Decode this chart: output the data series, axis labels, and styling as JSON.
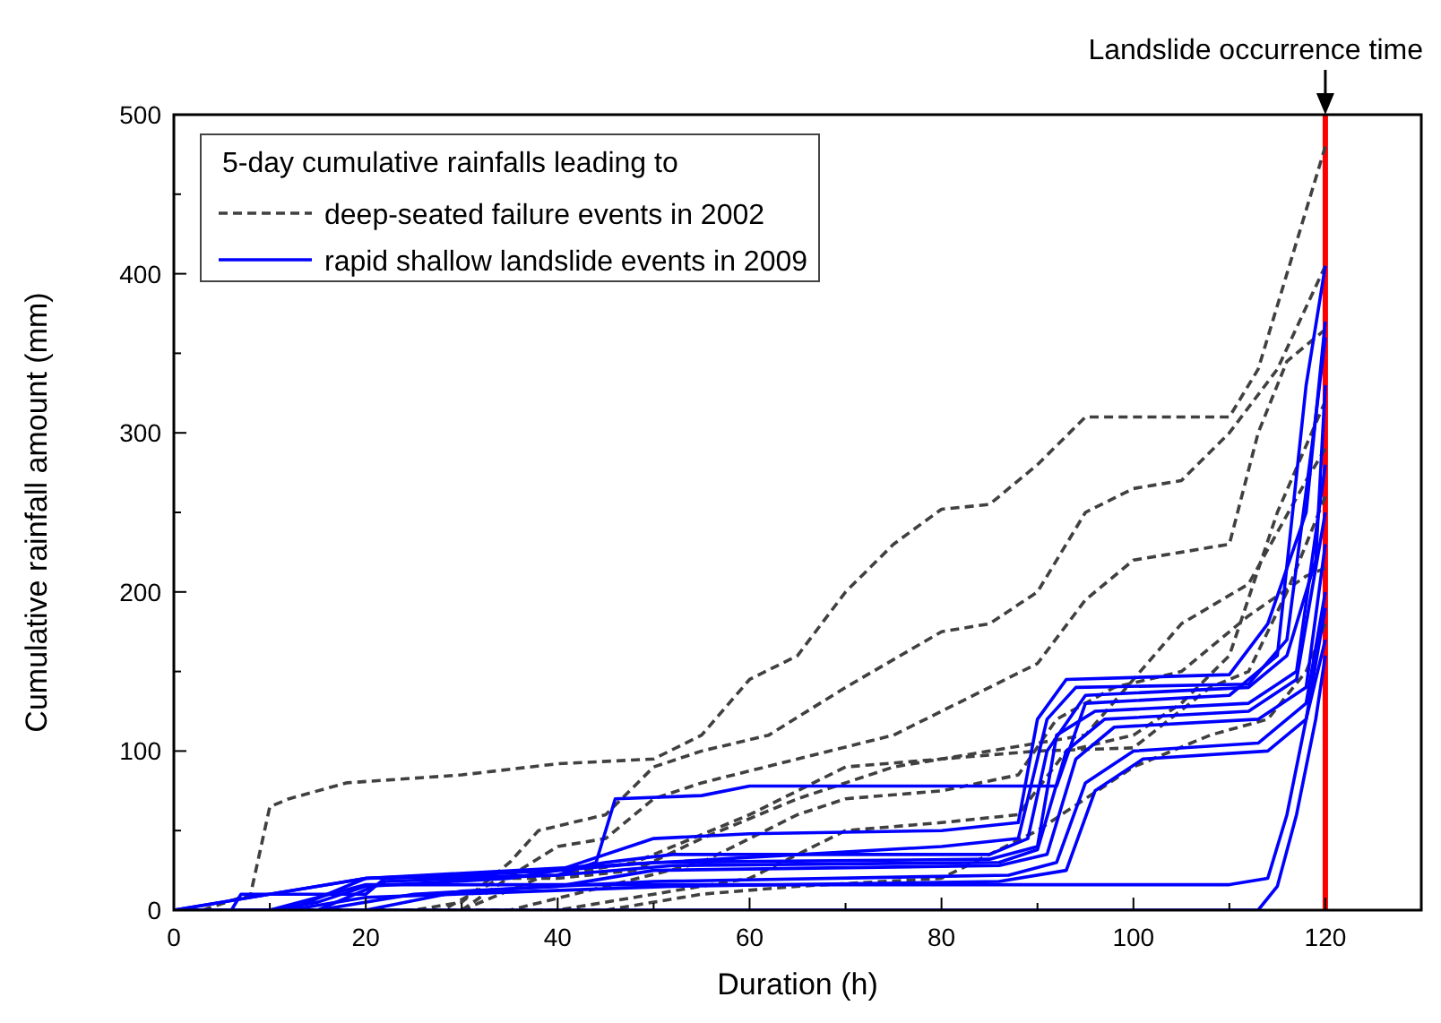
{
  "chart_data": {
    "type": "line",
    "xlabel": "Duration (h)",
    "ylabel": "Cumulative rainfall amount (mm)",
    "legend_title": "5-day cumulative rainfalls leading to",
    "legend": "top left",
    "grid": false,
    "marker": "none",
    "xlim": [
      0,
      130
    ],
    "ylim": [
      0,
      500
    ],
    "xticks": [
      0,
      {
        "value": 10,
        "label": null
      },
      20,
      {
        "value": 30,
        "label": null
      },
      40,
      {
        "value": 50,
        "label": null
      },
      60,
      {
        "value": 70,
        "label": null
      },
      80,
      {
        "value": 90,
        "label": null
      },
      100,
      {
        "value": 110,
        "label": null
      },
      120,
      {
        "value": 130,
        "label": null
      }
    ],
    "yticks": [
      0,
      {
        "value": 50,
        "label": null
      },
      100,
      {
        "value": 150,
        "label": null
      },
      200,
      {
        "value": 250,
        "label": null
      },
      300,
      {
        "value": 350,
        "label": null
      },
      400,
      {
        "value": 450,
        "label": null
      },
      500
    ],
    "ref_lines": [
      {
        "axis": "x",
        "value": 120,
        "label": "Landslide occurrence time",
        "color": "#ff0000",
        "line_style": "solid"
      }
    ],
    "series": [
      {
        "name": "deep-seated failure events in 2002",
        "color": "#404040",
        "line_style": "dashed",
        "x": [
          0,
          3,
          8,
          10,
          12,
          18,
          30,
          40,
          50,
          55,
          60,
          65,
          70,
          75,
          80,
          85,
          90,
          95,
          110,
          113,
          116,
          118,
          120
        ],
        "values": [
          0,
          0,
          10,
          65,
          70,
          80,
          85,
          92,
          95,
          110,
          145,
          160,
          200,
          230,
          252,
          255,
          280,
          310,
          310,
          340,
          400,
          440,
          480
        ]
      },
      {
        "color": "#404040",
        "line_style": "dashed",
        "x": [
          0,
          25,
          30,
          35,
          38,
          45,
          50,
          55,
          62,
          70,
          80,
          85,
          90,
          95,
          100,
          105,
          110,
          115,
          120
        ],
        "values": [
          0,
          0,
          5,
          30,
          50,
          60,
          90,
          100,
          110,
          140,
          175,
          180,
          200,
          250,
          265,
          270,
          300,
          340,
          405
        ]
      },
      {
        "color": "#404040",
        "line_style": "dashed",
        "x": [
          0,
          30,
          36,
          40,
          45,
          50,
          55,
          65,
          75,
          85,
          90,
          95,
          100,
          110,
          113,
          116,
          120
        ],
        "values": [
          0,
          0,
          25,
          40,
          45,
          70,
          80,
          95,
          110,
          140,
          155,
          195,
          220,
          230,
          300,
          345,
          365
        ]
      },
      {
        "color": "#404040",
        "line_style": "dashed",
        "x": [
          0,
          35,
          45,
          55,
          65,
          70,
          80,
          88,
          92,
          98,
          105,
          112,
          118,
          120
        ],
        "values": [
          0,
          0,
          15,
          30,
          60,
          70,
          75,
          85,
          120,
          140,
          150,
          185,
          210,
          215
        ]
      },
      {
        "color": "#404040",
        "line_style": "dashed",
        "x": [
          0,
          40,
          50,
          60,
          70,
          80,
          88,
          93,
          100,
          105,
          110,
          115,
          120
        ],
        "values": [
          0,
          0,
          10,
          20,
          50,
          55,
          60,
          100,
          110,
          130,
          160,
          250,
          320
        ]
      },
      {
        "color": "#404040",
        "line_style": "dashed",
        "x": [
          0,
          28,
          34,
          40,
          48,
          55,
          65,
          75,
          85,
          95,
          105,
          112,
          118,
          120
        ],
        "values": [
          0,
          0,
          20,
          20,
          25,
          45,
          70,
          90,
          100,
          110,
          180,
          205,
          270,
          290
        ]
      },
      {
        "color": "#404040",
        "line_style": "dashed",
        "x": [
          0,
          45,
          55,
          65,
          80,
          90,
          95,
          100,
          108,
          114,
          118,
          120
        ],
        "values": [
          0,
          0,
          10,
          15,
          20,
          50,
          70,
          90,
          110,
          120,
          150,
          180
        ]
      },
      {
        "color": "#404040",
        "line_style": "dashed",
        "x": [
          0,
          30,
          38,
          48,
          60,
          70,
          80,
          90,
          100,
          108,
          112,
          116,
          120
        ],
        "values": [
          0,
          0,
          20,
          30,
          60,
          90,
          95,
          100,
          102,
          140,
          150,
          200,
          260
        ]
      },
      {
        "name": "rapid shallow landslide events in 2009",
        "color": "#0000ff",
        "line_style": "solid",
        "x": [
          0,
          20,
          40,
          44,
          46,
          55,
          60,
          92,
          95,
          110,
          115,
          118,
          120
        ],
        "values": [
          0,
          20,
          22,
          30,
          70,
          72,
          78,
          78,
          130,
          135,
          160,
          330,
          405
        ]
      },
      {
        "color": "#0000ff",
        "line_style": "solid",
        "x": [
          0,
          6,
          7,
          20,
          22,
          40,
          50,
          60,
          80,
          88,
          90,
          93,
          110,
          114,
          118,
          120
        ],
        "values": [
          0,
          0,
          10,
          10,
          20,
          25,
          45,
          48,
          50,
          55,
          120,
          145,
          148,
          180,
          250,
          370
        ]
      },
      {
        "color": "#0000ff",
        "line_style": "solid",
        "x": [
          0,
          10,
          15,
          20,
          35,
          45,
          52,
          85,
          89,
          91,
          95,
          112,
          116,
          119,
          120
        ],
        "values": [
          0,
          0,
          5,
          15,
          20,
          30,
          35,
          35,
          45,
          100,
          135,
          140,
          160,
          220,
          330
        ]
      },
      {
        "color": "#0000ff",
        "line_style": "solid",
        "x": [
          0,
          12,
          20,
          40,
          50,
          85,
          90,
          92,
          96,
          112,
          117,
          120
        ],
        "values": [
          0,
          0,
          20,
          25,
          30,
          32,
          40,
          110,
          125,
          130,
          150,
          280
        ]
      },
      {
        "color": "#0000ff",
        "line_style": "solid",
        "x": [
          0,
          15,
          22,
          40,
          52,
          86,
          90,
          93,
          97,
          112,
          117,
          120
        ],
        "values": [
          0,
          0,
          18,
          22,
          28,
          30,
          38,
          100,
          120,
          125,
          145,
          250
        ]
      },
      {
        "color": "#0000ff",
        "line_style": "solid",
        "x": [
          0,
          15,
          25,
          40,
          50,
          86,
          91,
          94,
          98,
          113,
          118,
          120
        ],
        "values": [
          0,
          0,
          10,
          15,
          25,
          28,
          35,
          95,
          115,
          120,
          140,
          230
        ]
      },
      {
        "color": "#0000ff",
        "line_style": "solid",
        "x": [
          0,
          20,
          30,
          50,
          87,
          92,
          95,
          100,
          113,
          118,
          120
        ],
        "values": [
          0,
          0,
          12,
          18,
          22,
          30,
          80,
          100,
          105,
          130,
          200
        ]
      },
      {
        "color": "#0000ff",
        "line_style": "solid",
        "x": [
          0,
          12,
          20,
          52,
          86,
          93,
          96,
          101,
          114,
          118,
          120
        ],
        "values": [
          0,
          0,
          8,
          15,
          18,
          25,
          75,
          95,
          100,
          120,
          170
        ]
      },
      {
        "color": "#0000ff",
        "line_style": "solid",
        "x": [
          0,
          10,
          20,
          50,
          110,
          114,
          116,
          118,
          120
        ],
        "values": [
          0,
          0,
          16,
          16,
          16,
          20,
          60,
          120,
          190
        ]
      },
      {
        "color": "#0000ff",
        "line_style": "solid",
        "x": [
          0,
          113,
          115,
          117,
          119,
          120
        ],
        "values": [
          0,
          0,
          15,
          60,
          120,
          160
        ]
      },
      {
        "color": "#0000ff",
        "line_style": "solid",
        "x": [
          0,
          20,
          45,
          80,
          88,
          91,
          94,
          112,
          116,
          119,
          120
        ],
        "values": [
          0,
          20,
          28,
          40,
          45,
          120,
          140,
          142,
          170,
          310,
          360
        ]
      }
    ]
  }
}
